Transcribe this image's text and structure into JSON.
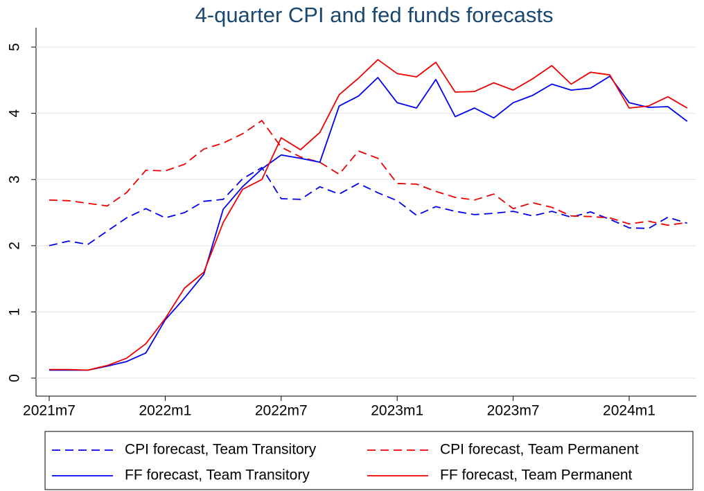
{
  "chart_data": {
    "type": "line",
    "title": "4-quarter CPI and fed funds forecasts",
    "categories": [
      "2021m7",
      null,
      null,
      null,
      null,
      null,
      "2022m1",
      null,
      null,
      null,
      null,
      null,
      "2022m7",
      null,
      null,
      null,
      null,
      null,
      "2023m1",
      null,
      null,
      null,
      null,
      null,
      "2023m7",
      null,
      null,
      null,
      null,
      null,
      "2024m1",
      null,
      null,
      null
    ],
    "series": [
      {
        "name": "CPI forecast, Team Transitory",
        "color": "#0000ee",
        "style": "dashed",
        "values": [
          2.0,
          2.07,
          2.02,
          2.22,
          2.42,
          2.56,
          2.42,
          2.5,
          2.67,
          2.7,
          3.01,
          3.18,
          2.71,
          2.7,
          2.89,
          2.78,
          2.94,
          2.8,
          2.68,
          2.46,
          2.59,
          2.52,
          2.47,
          2.49,
          2.52,
          2.45,
          2.52,
          2.43,
          2.51,
          2.4,
          2.27,
          2.26,
          2.43,
          2.34
        ]
      },
      {
        "name": "CPI forecast, Team Permanent",
        "color": "#ee0000",
        "style": "dashed",
        "values": [
          2.69,
          2.68,
          2.64,
          2.6,
          2.8,
          3.14,
          3.13,
          3.23,
          3.46,
          3.55,
          3.69,
          3.89,
          3.49,
          3.34,
          3.26,
          3.08,
          3.43,
          3.32,
          2.94,
          2.93,
          2.82,
          2.73,
          2.69,
          2.78,
          2.56,
          2.65,
          2.58,
          2.45,
          2.44,
          2.42,
          2.33,
          2.37,
          2.31,
          2.35
        ]
      },
      {
        "name": "FF forecast, Team Transitory",
        "color": "#0000ee",
        "style": "solid",
        "values": [
          0.12,
          0.12,
          0.12,
          0.18,
          0.25,
          0.38,
          0.88,
          1.21,
          1.57,
          2.55,
          2.89,
          3.16,
          3.37,
          3.32,
          3.26,
          4.11,
          4.26,
          4.54,
          4.16,
          4.08,
          4.51,
          3.95,
          4.08,
          3.93,
          4.16,
          4.27,
          4.44,
          4.35,
          4.38,
          4.56,
          4.16,
          4.09,
          4.1,
          3.88
        ]
      },
      {
        "name": "FF forecast, Team Permanent",
        "color": "#ee0000",
        "style": "solid",
        "values": [
          0.13,
          0.13,
          0.12,
          0.19,
          0.3,
          0.52,
          0.9,
          1.36,
          1.6,
          2.35,
          2.85,
          3.0,
          3.63,
          3.45,
          3.71,
          4.28,
          4.53,
          4.81,
          4.6,
          4.55,
          4.77,
          4.32,
          4.33,
          4.46,
          4.35,
          4.52,
          4.72,
          4.44,
          4.62,
          4.58,
          4.08,
          4.11,
          4.25,
          4.08
        ]
      }
    ],
    "ylim": [
      0,
      5
    ],
    "yticks": [
      0,
      1,
      2,
      3,
      4,
      5
    ],
    "grid": true
  }
}
